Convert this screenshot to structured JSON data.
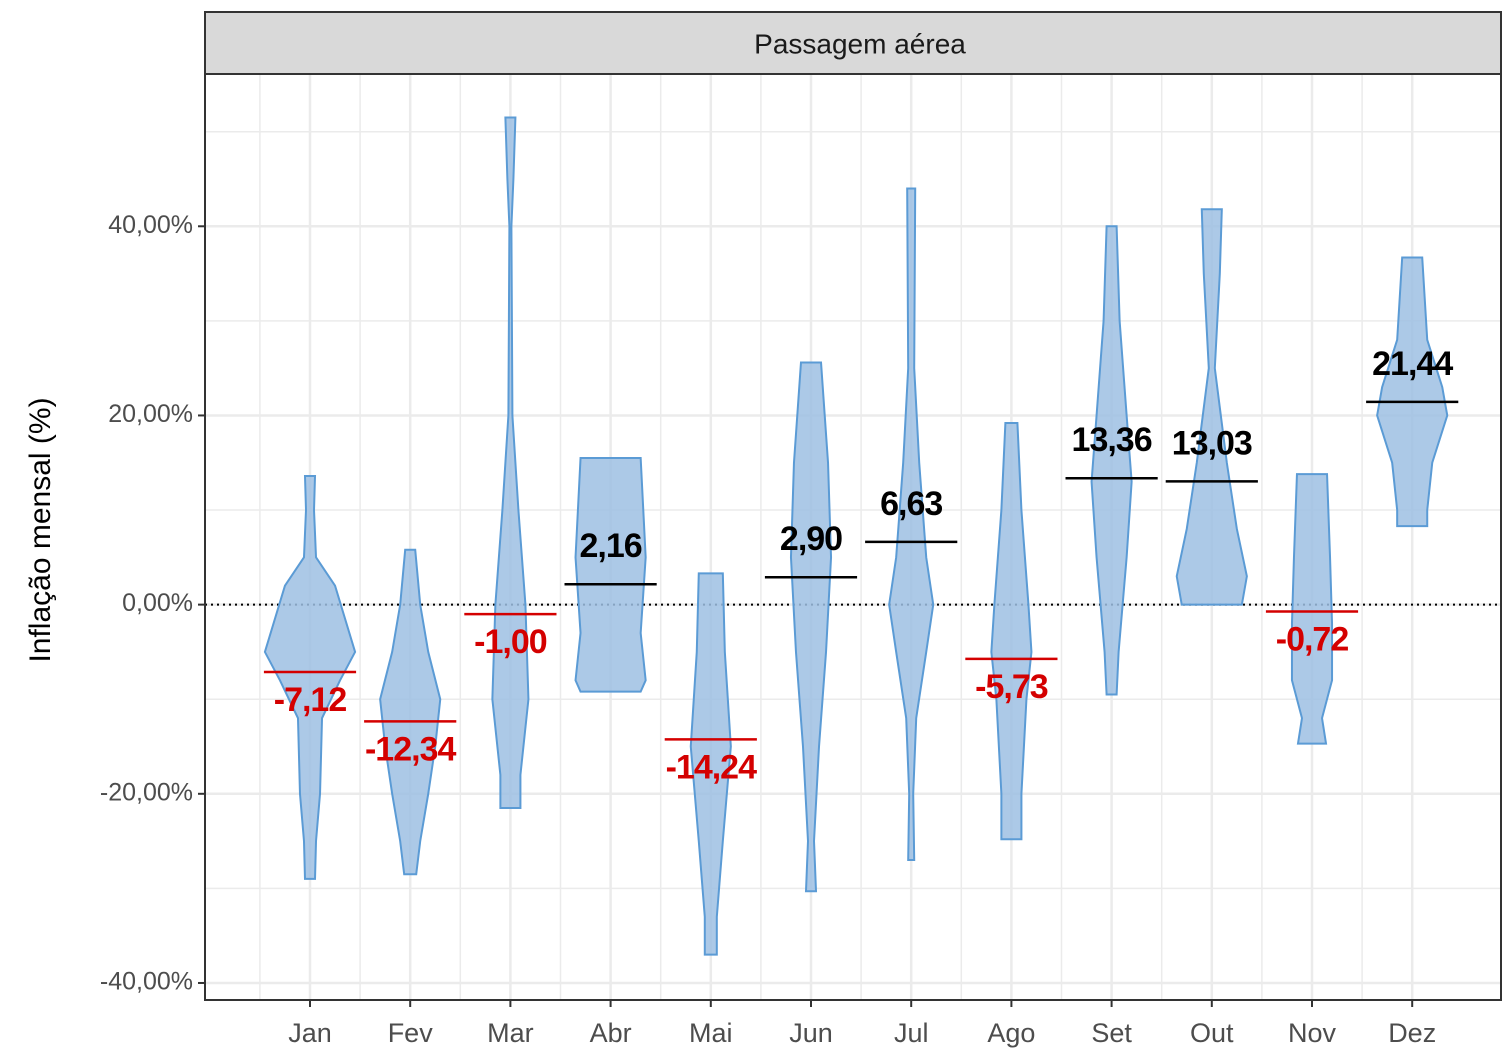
{
  "chart_data": {
    "type": "violin",
    "strip_title": "Passagem aérea",
    "y_label": "Inflação mensal (%)",
    "categories": [
      "Jan",
      "Fev",
      "Mar",
      "Abr",
      "Mai",
      "Jun",
      "Jul",
      "Ago",
      "Set",
      "Out",
      "Nov",
      "Dez"
    ],
    "medians": [
      -7.12,
      -12.34,
      -1.0,
      2.16,
      -14.24,
      2.9,
      6.63,
      -5.73,
      13.36,
      13.03,
      -0.72,
      21.44
    ],
    "value_labels": [
      "-7,12",
      "-12,34",
      "-1,00",
      "2,16",
      "-14,24",
      "2,90",
      "6,63",
      "-5,73",
      "13,36",
      "13,03",
      "-0,72",
      "21,44"
    ],
    "violins": [
      {
        "y": [
          13.6,
          10,
          5,
          2,
          -5,
          -8,
          -12,
          -20,
          -25,
          -29
        ],
        "width": [
          0.05,
          0.04,
          0.06,
          0.25,
          0.45,
          0.3,
          0.12,
          0.1,
          0.06,
          0.05
        ]
      },
      {
        "y": [
          5.8,
          0,
          -5,
          -10,
          -15,
          -20,
          -25,
          -28.5
        ],
        "width": [
          0.05,
          0.1,
          0.18,
          0.3,
          0.25,
          0.18,
          0.1,
          0.06
        ]
      },
      {
        "y": [
          51.5,
          45,
          40,
          20,
          10,
          0,
          -10,
          -18,
          -21.5
        ],
        "width": [
          0.05,
          0.03,
          0.01,
          0.02,
          0.08,
          0.15,
          0.18,
          0.1,
          0.1
        ]
      },
      {
        "y": [
          15.5,
          5,
          -3,
          -8,
          -9.2
        ],
        "width": [
          0.3,
          0.35,
          0.3,
          0.35,
          0.3
        ]
      },
      {
        "y": [
          3.3,
          -5,
          -15,
          -25,
          -33,
          -37
        ],
        "width": [
          0.12,
          0.14,
          0.2,
          0.12,
          0.06,
          0.06
        ]
      },
      {
        "y": [
          25.6,
          15,
          5,
          -5,
          -15,
          -25,
          -30.3
        ],
        "width": [
          0.1,
          0.17,
          0.2,
          0.15,
          0.08,
          0.03,
          0.05
        ]
      },
      {
        "y": [
          44,
          25,
          15,
          5,
          0,
          -5,
          -12,
          -20,
          -27
        ],
        "width": [
          0.04,
          0.03,
          0.08,
          0.15,
          0.22,
          0.15,
          0.05,
          0.02,
          0.03
        ]
      },
      {
        "y": [
          19.2,
          10,
          0,
          -5,
          -10,
          -20,
          -24.8
        ],
        "width": [
          0.06,
          0.1,
          0.17,
          0.2,
          0.15,
          0.1,
          0.1
        ]
      },
      {
        "y": [
          40,
          30,
          20,
          13,
          5,
          -5,
          -9.5
        ],
        "width": [
          0.05,
          0.08,
          0.15,
          0.2,
          0.15,
          0.07,
          0.05
        ]
      },
      {
        "y": [
          41.8,
          35,
          25,
          15,
          8,
          3,
          0
        ],
        "width": [
          0.1,
          0.08,
          0.03,
          0.15,
          0.25,
          0.35,
          0.3
        ]
      },
      {
        "y": [
          13.8,
          5,
          -2,
          -8,
          -12,
          -14.7
        ],
        "width": [
          0.15,
          0.18,
          0.2,
          0.2,
          0.1,
          0.14
        ]
      },
      {
        "y": [
          36.7,
          28,
          23,
          20,
          15,
          10,
          8.3
        ],
        "width": [
          0.1,
          0.15,
          0.3,
          0.35,
          0.2,
          0.15,
          0.15
        ]
      }
    ],
    "violin_fill": "#9dbfe3",
    "violin_stroke": "#5b9bd5",
    "positive_color": "#000000",
    "negative_color": "#d40000",
    "reference_line": 0,
    "ylim": [
      -41.8,
      56.1
    ],
    "yticks": [
      {
        "value": -40,
        "label": "-40,00%"
      },
      {
        "value": -20,
        "label": "-20,00%"
      },
      {
        "value": 0,
        "label": "0,00%"
      },
      {
        "value": 20,
        "label": "20,00%"
      },
      {
        "value": 40,
        "label": "40,00%"
      }
    ],
    "minor_yticks": [
      -30,
      -10,
      10,
      30,
      50
    ],
    "grid": true
  }
}
